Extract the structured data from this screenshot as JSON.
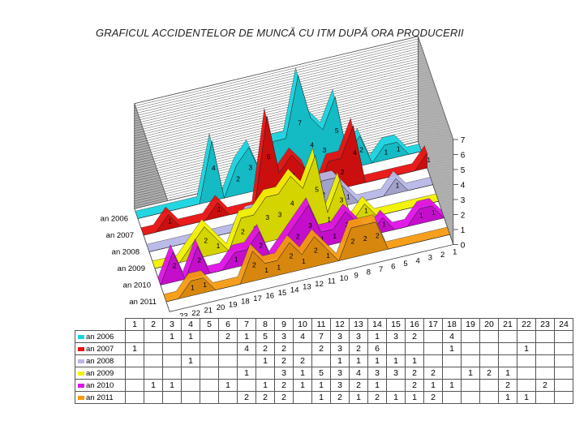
{
  "title": "GRAFICUL ACCIDENTELOR DE MUNCĂ CU ITM DUPĂ ORA PRODUCERII",
  "chart_data": {
    "type": "area",
    "title": "GRAFICUL ACCIDENTELOR DE MUNCĂ CU ITM DUPĂ ORA PRODUCERII",
    "categories": [
      "1",
      "2",
      "3",
      "4",
      "5",
      "6",
      "7",
      "8",
      "9",
      "10",
      "11",
      "12",
      "13",
      "14",
      "15",
      "16",
      "17",
      "18",
      "19",
      "20",
      "21",
      "22",
      "23",
      "24"
    ],
    "zlim": [
      0,
      7
    ],
    "z_ticks": [
      "0",
      "1",
      "2",
      "3",
      "4",
      "5",
      "6",
      "7"
    ],
    "series": [
      {
        "name": "an 2006",
        "color": "#17d4e0",
        "values": [
          null,
          null,
          1,
          1,
          null,
          2,
          1,
          5,
          3,
          4,
          7,
          3,
          3,
          1,
          3,
          2,
          null,
          4,
          null,
          null,
          null,
          null,
          null,
          null
        ],
        "labels": [
          "",
          "",
          "1",
          "1",
          "",
          "2",
          "1",
          "5",
          "3",
          "4",
          "7",
          "3",
          "3",
          "1",
          "3",
          "2",
          "",
          "4",
          "",
          "",
          "",
          "",
          "",
          ""
        ]
      },
      {
        "name": "an 2007",
        "color": "#e81010",
        "values": [
          1,
          null,
          null,
          null,
          null,
          null,
          4,
          2,
          2,
          null,
          2,
          3,
          2,
          6,
          null,
          null,
          null,
          1,
          null,
          null,
          null,
          1,
          null,
          null
        ],
        "labels": [
          "1",
          "",
          "",
          "",
          "",
          "",
          "4",
          "2",
          "2",
          "",
          "2",
          "3",
          "2",
          "6",
          "",
          "",
          "",
          "1",
          "",
          "",
          "",
          "1",
          "",
          ""
        ]
      },
      {
        "name": "an 2008",
        "color": "#b8b8e8",
        "values": [
          null,
          null,
          null,
          1,
          null,
          null,
          null,
          1,
          2,
          2,
          null,
          1,
          1,
          1,
          1,
          1,
          null,
          null,
          null,
          null,
          null,
          null,
          null,
          null
        ],
        "labels": [
          "",
          "",
          "",
          "1",
          "",
          "",
          "",
          "1",
          "2",
          "2",
          "",
          "1",
          "1",
          "1",
          "1",
          "1",
          "",
          "",
          "",
          "",
          "",
          "",
          "",
          ""
        ]
      },
      {
        "name": "an 2009",
        "color": "#f2f200",
        "values": [
          null,
          null,
          null,
          null,
          null,
          null,
          1,
          null,
          3,
          1,
          5,
          3,
          4,
          3,
          3,
          2,
          2,
          null,
          1,
          2,
          1,
          null,
          null,
          null
        ],
        "labels": [
          "",
          "",
          "",
          "",
          "",
          "",
          "1",
          "",
          "3",
          "1",
          "5",
          "3",
          "4",
          "3",
          "3",
          "2",
          "2",
          "",
          "1",
          "2",
          "1",
          "",
          "",
          ""
        ]
      },
      {
        "name": "an 2010",
        "color": "#e010e8",
        "values": [
          null,
          1,
          1,
          null,
          null,
          1,
          null,
          1,
          2,
          1,
          1,
          3,
          2,
          1,
          null,
          2,
          1,
          1,
          null,
          null,
          2,
          null,
          2,
          null
        ],
        "labels": [
          "",
          "1",
          "1",
          "",
          "",
          "1",
          "",
          "1",
          "2",
          "1",
          "1",
          "3",
          "2",
          "1",
          "",
          "2",
          "1",
          "1",
          "",
          "",
          "2",
          "",
          "2",
          ""
        ]
      },
      {
        "name": "an 2011",
        "color": "#f59a10",
        "values": [
          null,
          null,
          null,
          null,
          null,
          null,
          2,
          2,
          2,
          null,
          1,
          2,
          1,
          2,
          1,
          1,
          2,
          null,
          null,
          null,
          1,
          1,
          null,
          null
        ],
        "labels": [
          "",
          "",
          "",
          "",
          "",
          "",
          "2",
          "2",
          "2",
          "",
          "1",
          "2",
          "1",
          "2",
          "1",
          "1",
          "2",
          "",
          "",
          "",
          "1",
          "1",
          "",
          ""
        ]
      }
    ]
  }
}
